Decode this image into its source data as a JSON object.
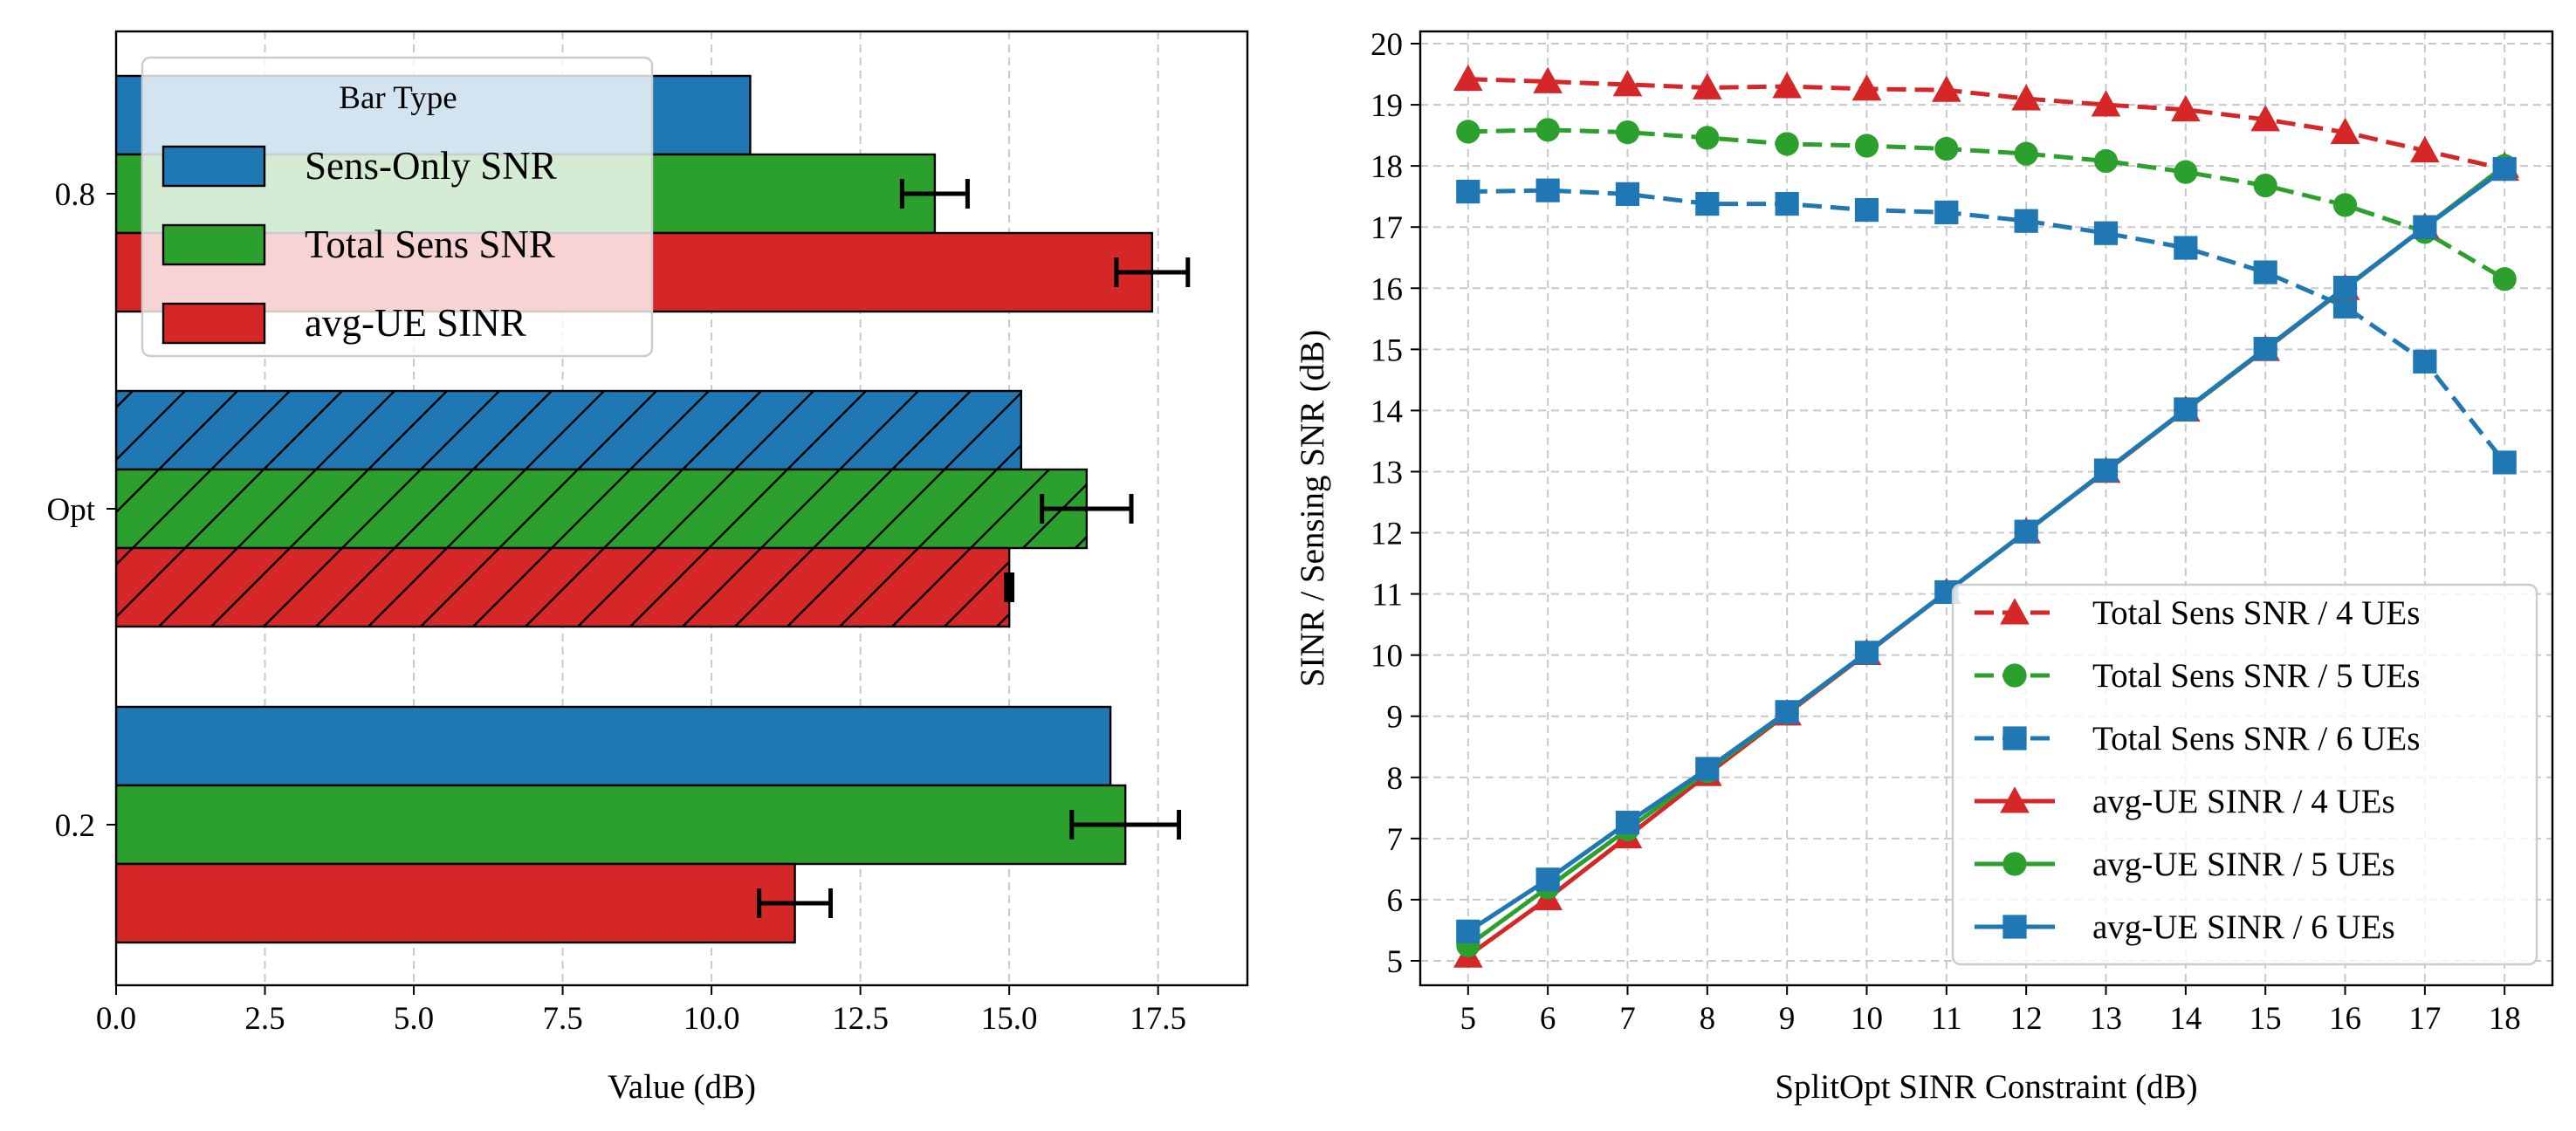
{
  "chart_data": [
    {
      "type": "bar",
      "orientation": "horizontal",
      "xlabel": "Value (dB)",
      "ylabel": "",
      "xlim": [
        0,
        19
      ],
      "xticks": [
        "0.0",
        "2.5",
        "5.0",
        "7.5",
        "10.0",
        "12.5",
        "15.0",
        "17.5"
      ],
      "categories": [
        "0.8",
        "Opt",
        "0.2"
      ],
      "grid": "vertical dashed",
      "legend": {
        "title": "Bar Type",
        "placement": "top-left",
        "entries": [
          "Sens-Only SNR",
          "Total Sens SNR",
          "avg-UE SINR"
        ]
      },
      "series": [
        {
          "name": "Sens-Only SNR",
          "color": "#1f77b4",
          "values": [
            10.65,
            15.2,
            16.7
          ],
          "errors": [
            null,
            null,
            null
          ]
        },
        {
          "name": "Total Sens SNR",
          "color": "#2ca02c",
          "values": [
            13.75,
            16.3,
            16.95
          ],
          "errors": [
            0.55,
            0.75,
            0.9
          ]
        },
        {
          "name": "avg-UE SINR",
          "color": "#d62728",
          "values": [
            17.4,
            15.0,
            11.4
          ],
          "errors": [
            0.6,
            0.05,
            0.6
          ]
        }
      ],
      "hatched_category": "Opt"
    },
    {
      "type": "line",
      "xlabel": "SplitOpt SINR Constraint (dB)",
      "ylabel": "SINR / Sensing SNR (dB)",
      "xlim": [
        4.4,
        18.6
      ],
      "ylim": [
        4.6,
        20.2
      ],
      "x": [
        5,
        6,
        7,
        8,
        9,
        10,
        11,
        12,
        13,
        14,
        15,
        16,
        17,
        18
      ],
      "xticks": [
        "5",
        "6",
        "7",
        "8",
        "9",
        "10",
        "11",
        "12",
        "13",
        "14",
        "15",
        "16",
        "17",
        "18"
      ],
      "yticks": [
        "5",
        "6",
        "7",
        "8",
        "9",
        "10",
        "11",
        "12",
        "13",
        "14",
        "15",
        "16",
        "17",
        "18",
        "19",
        "20"
      ],
      "grid": "both dashed",
      "legend": {
        "placement": "bottom-right"
      },
      "series": [
        {
          "name": "Total Sens SNR / 4 UEs",
          "color": "#d62728",
          "marker": "triangle",
          "dash": true,
          "values": [
            19.42,
            19.38,
            19.33,
            19.28,
            19.3,
            19.26,
            19.24,
            19.1,
            19.0,
            18.92,
            18.76,
            18.55,
            18.25,
            17.95
          ]
        },
        {
          "name": "Total Sens SNR / 5 UEs",
          "color": "#2ca02c",
          "marker": "circle",
          "dash": true,
          "values": [
            18.56,
            18.59,
            18.55,
            18.46,
            18.36,
            18.33,
            18.28,
            18.2,
            18.08,
            17.9,
            17.68,
            17.36,
            16.92,
            16.15
          ]
        },
        {
          "name": "Total Sens SNR / 6 UEs",
          "color": "#1f77b4",
          "marker": "square",
          "dash": true,
          "values": [
            17.58,
            17.6,
            17.54,
            17.38,
            17.38,
            17.28,
            17.24,
            17.1,
            16.9,
            16.66,
            16.26,
            15.7,
            14.8,
            13.15
          ]
        },
        {
          "name": "avg-UE SINR / 4 UEs",
          "color": "#d62728",
          "marker": "triangle",
          "dash": false,
          "values": [
            5.08,
            6.02,
            7.03,
            8.05,
            9.04,
            10.03,
            11.03,
            12.02,
            13.01,
            14.01,
            15.0,
            16.0,
            17.0,
            18.0
          ]
        },
        {
          "name": "avg-UE SINR / 5 UEs",
          "color": "#2ca02c",
          "marker": "circle",
          "dash": false,
          "values": [
            5.25,
            6.2,
            7.15,
            8.1,
            9.06,
            10.04,
            11.03,
            12.02,
            13.02,
            14.01,
            15.01,
            16.0,
            17.0,
            18.0
          ]
        },
        {
          "name": "avg-UE SINR / 6 UEs",
          "color": "#1f77b4",
          "marker": "square",
          "dash": false,
          "values": [
            5.48,
            6.33,
            7.26,
            8.14,
            9.07,
            10.04,
            11.03,
            12.02,
            13.02,
            14.02,
            15.01,
            16.01,
            17.0,
            17.95
          ]
        }
      ]
    }
  ]
}
